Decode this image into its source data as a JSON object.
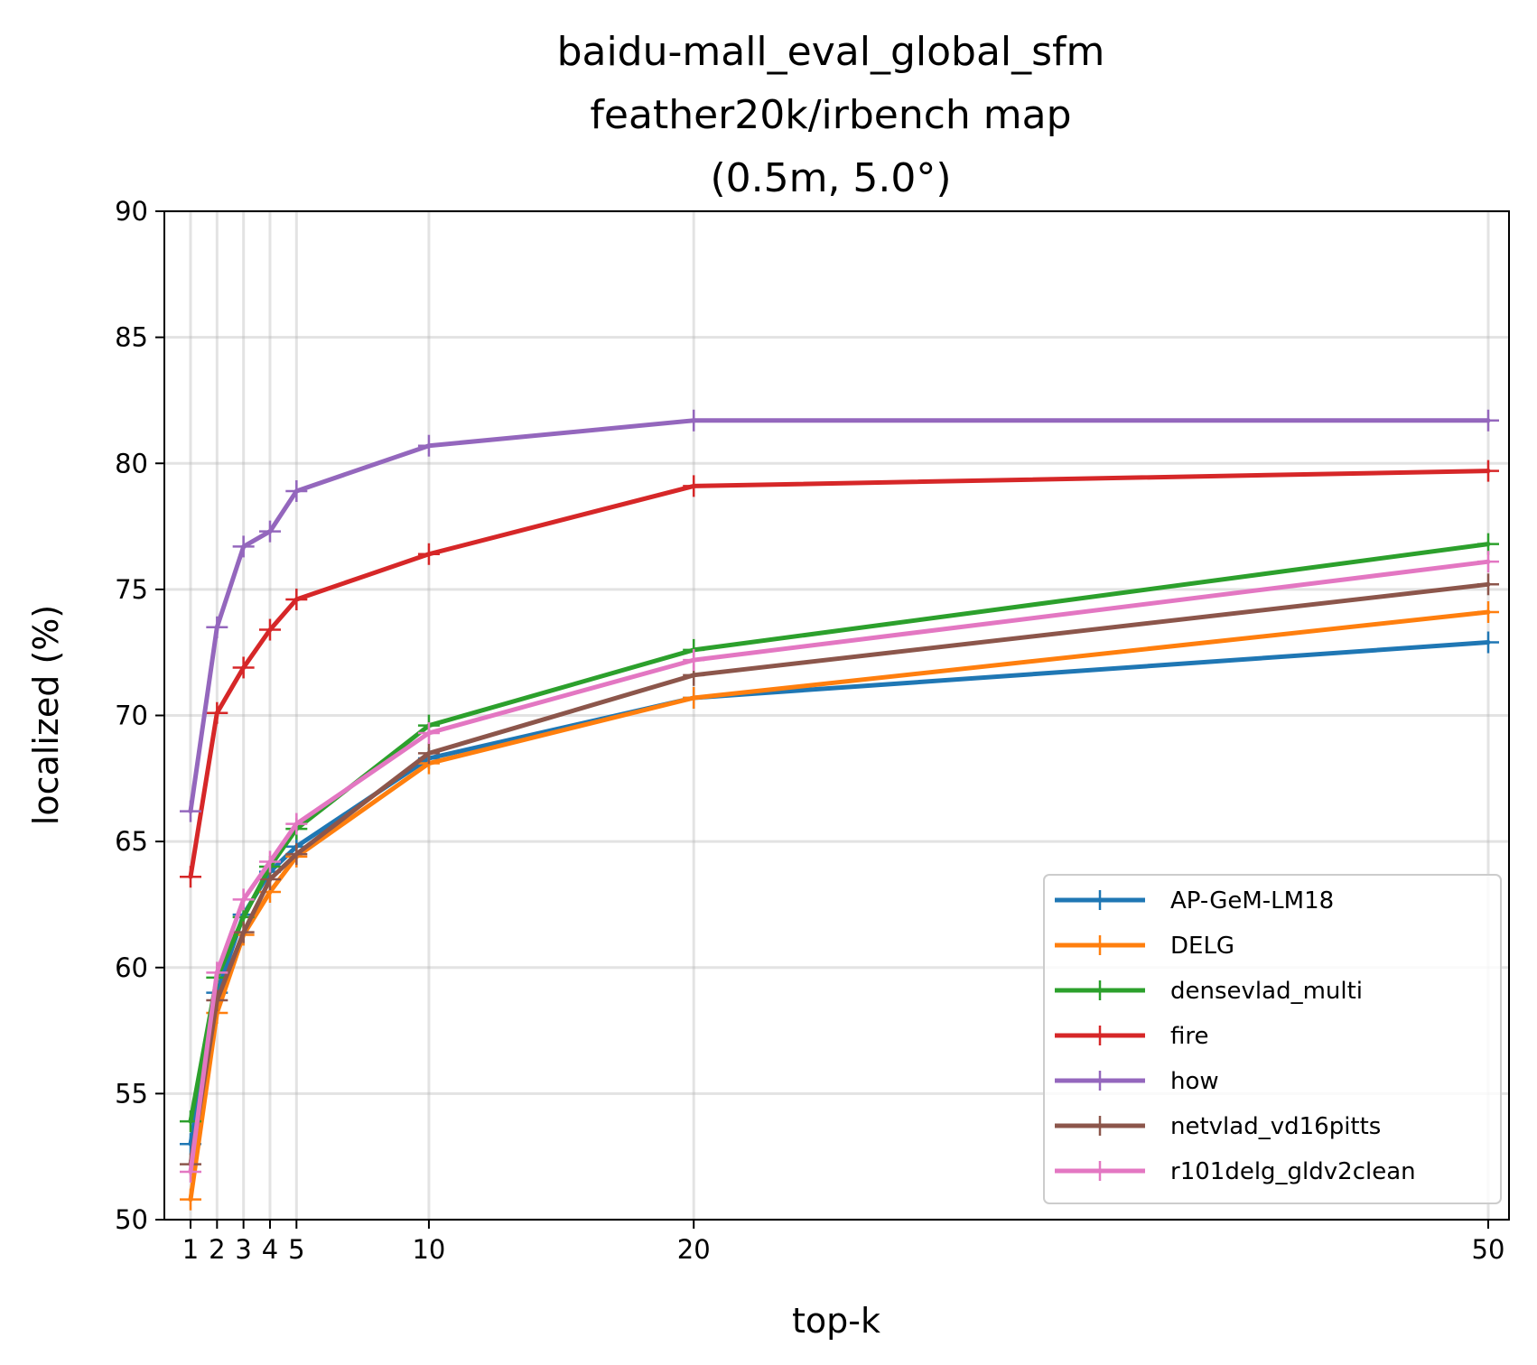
{
  "chart_data": {
    "type": "line",
    "title": [
      "baidu-mall_eval_global_sfm",
      "feather20k/irbench map",
      "(0.5m, 5.0°)"
    ],
    "xlabel": "top-k",
    "ylabel": "localized (%)",
    "x": [
      1,
      2,
      3,
      4,
      5,
      10,
      20,
      50
    ],
    "x_ticks": [
      1,
      2,
      3,
      4,
      5,
      10,
      20,
      50
    ],
    "x_tick_labels": [
      "1",
      "2",
      "3",
      "4",
      "5",
      "10",
      "20",
      "50"
    ],
    "ylim": [
      50,
      90
    ],
    "y_ticks": [
      50,
      55,
      60,
      65,
      70,
      75,
      80,
      85,
      90
    ],
    "y_tick_labels": [
      "50",
      "55",
      "60",
      "65",
      "70",
      "75",
      "80",
      "85",
      "90"
    ],
    "grid": true,
    "legend_position": "lower-right",
    "series": [
      {
        "name": "AP-GeM-LM18",
        "color": "#1f77b4",
        "values": [
          53.0,
          59.0,
          62.1,
          63.8,
          64.8,
          68.3,
          70.7,
          72.9
        ]
      },
      {
        "name": "DELG",
        "color": "#ff7f0e",
        "values": [
          50.8,
          58.2,
          61.3,
          63.0,
          64.4,
          68.1,
          70.7,
          74.1
        ]
      },
      {
        "name": "densevlad_multi",
        "color": "#2ca02c",
        "values": [
          53.9,
          59.6,
          62.0,
          64.0,
          65.5,
          69.6,
          72.6,
          76.8
        ]
      },
      {
        "name": "fire",
        "color": "#d62728",
        "values": [
          63.6,
          70.1,
          71.9,
          73.4,
          74.6,
          76.4,
          79.1,
          79.7
        ]
      },
      {
        "name": "how",
        "color": "#9467bd",
        "values": [
          66.2,
          73.5,
          76.7,
          77.3,
          78.9,
          80.7,
          81.7,
          81.7
        ]
      },
      {
        "name": "netvlad_vd16pitts",
        "color": "#8c564b",
        "values": [
          52.2,
          58.7,
          61.4,
          63.5,
          64.5,
          68.5,
          71.6,
          75.2
        ]
      },
      {
        "name": "r101delg_gldv2clean",
        "color": "#e377c2",
        "values": [
          51.9,
          59.8,
          62.7,
          64.2,
          65.7,
          69.3,
          72.2,
          76.1
        ]
      }
    ]
  }
}
